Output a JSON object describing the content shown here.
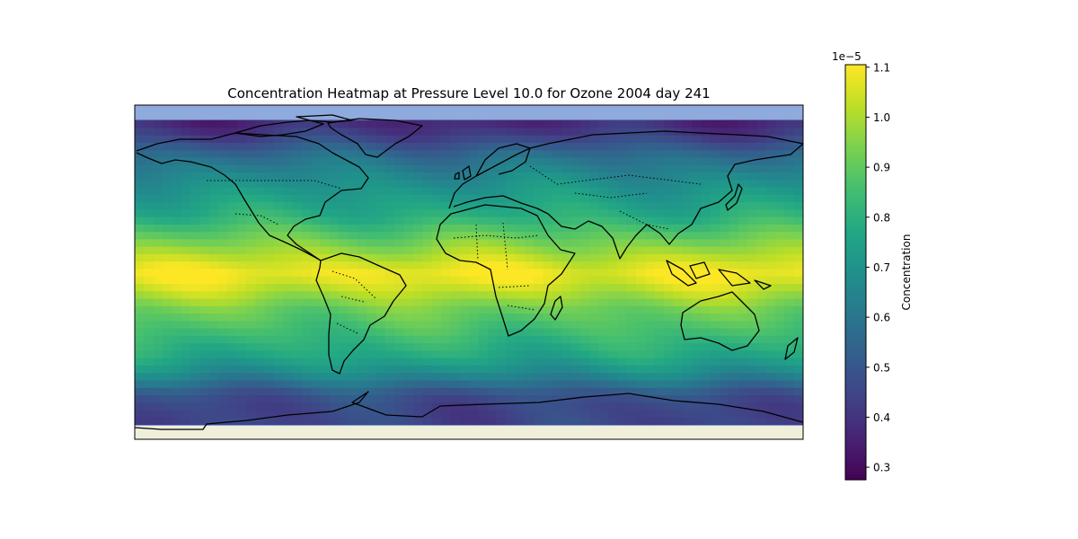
{
  "chart_data": {
    "type": "heatmap",
    "title": "Concentration Heatmap at Pressure Level 10.0 for Ozone 2004 day 241",
    "projection": "PlateCarree",
    "x_range": [
      -180,
      180
    ],
    "y_range": [
      -90,
      90
    ],
    "data_lat_range": [
      -82,
      82
    ],
    "colormap": "viridis",
    "colorbar": {
      "label": "Concentration",
      "multiplier_text": "1e−5",
      "range": [
        0.275,
        1.105
      ],
      "ticks": [
        0.3,
        0.4,
        0.5,
        0.6,
        0.7,
        0.8,
        0.9,
        1.0,
        1.1
      ],
      "tick_labels": [
        "0.3",
        "0.4",
        "0.5",
        "0.6",
        "0.7",
        "0.8",
        "0.9",
        "1.0",
        "1.1"
      ]
    },
    "zonal_profile": {
      "lat": [
        -82,
        -75,
        -70,
        -65,
        -60,
        -55,
        -50,
        -45,
        -40,
        -30,
        -20,
        -15,
        -10,
        -5,
        0,
        5,
        10,
        15,
        20,
        30,
        40,
        45,
        50,
        55,
        60,
        65,
        70,
        75,
        82
      ],
      "values": [
        0.45,
        0.45,
        0.46,
        0.5,
        0.58,
        0.66,
        0.72,
        0.77,
        0.8,
        0.86,
        0.92,
        0.97,
        1.02,
        1.07,
        1.09,
        1.05,
        1.0,
        0.95,
        0.9,
        0.8,
        0.74,
        0.71,
        0.68,
        0.64,
        0.6,
        0.55,
        0.48,
        0.42,
        0.37
      ]
    },
    "grid": false,
    "legend": "colorbar-right"
  },
  "colors": {
    "ocean": "#8faadc",
    "land": "#efefdb",
    "coastline": "#000000"
  }
}
